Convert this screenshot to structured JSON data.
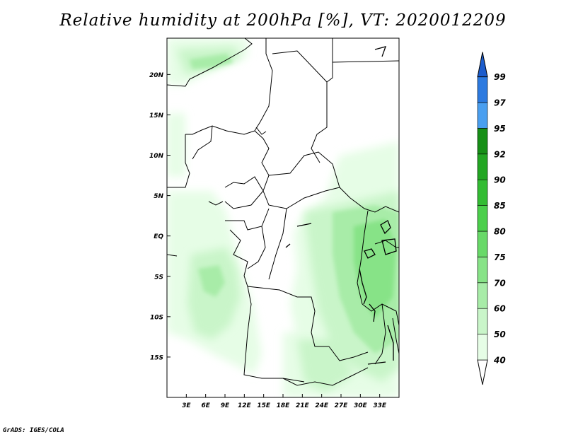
{
  "title": "Relative humidity at 200hPa [%], VT: 2020012209",
  "credit": "GrADS: IGES/COLA",
  "map": {
    "lon_range": [
      0,
      36
    ],
    "lat_range": [
      -20,
      24.5
    ],
    "lat_ticks": [
      {
        "value": 20,
        "label": "20N"
      },
      {
        "value": 15,
        "label": "15N"
      },
      {
        "value": 10,
        "label": "10N"
      },
      {
        "value": 5,
        "label": "5N"
      },
      {
        "value": 0,
        "label": "EQ"
      },
      {
        "value": -5,
        "label": "5S"
      },
      {
        "value": -10,
        "label": "10S"
      },
      {
        "value": -15,
        "label": "15S"
      }
    ],
    "lon_ticks": [
      {
        "value": 3,
        "label": "3E"
      },
      {
        "value": 6,
        "label": "6E"
      },
      {
        "value": 9,
        "label": "9E"
      },
      {
        "value": 12,
        "label": "12E"
      },
      {
        "value": 15,
        "label": "15E"
      },
      {
        "value": 18,
        "label": "18E"
      },
      {
        "value": 21,
        "label": "21E"
      },
      {
        "value": 24,
        "label": "24E"
      },
      {
        "value": 27,
        "label": "27E"
      },
      {
        "value": 30,
        "label": "30E"
      },
      {
        "value": 33,
        "label": "33E"
      }
    ]
  },
  "colorbar": {
    "labels": [
      "40",
      "50",
      "60",
      "70",
      "75",
      "80",
      "85",
      "90",
      "92",
      "95",
      "97",
      "99"
    ],
    "colors": [
      "#ffffff",
      "#e6fde6",
      "#c9f5c9",
      "#a8eca8",
      "#87e387",
      "#68d968",
      "#4bcf4b",
      "#33bc33",
      "#22a622",
      "#168f16",
      "#4a9ff0",
      "#2c7ae0",
      "#1c5ccc"
    ]
  }
}
